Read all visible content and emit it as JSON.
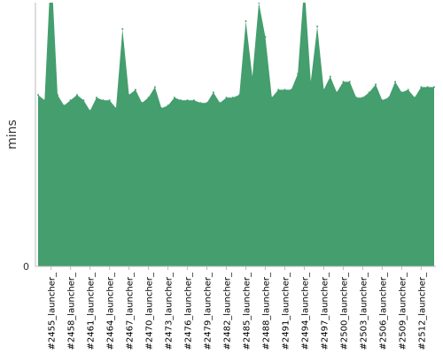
{
  "chart_data": {
    "type": "area",
    "xlabel": "",
    "ylabel": "mins",
    "y_ticks": [
      "0"
    ],
    "grid": false,
    "fill_color": "#449e6e",
    "axis_color": "#bbbbbb",
    "x_tick_labels": [
      "#2455_launcher_",
      "#2458_launcher_",
      "#2461_launcher_",
      "#2464_launcher_",
      "#2467_launcher_",
      "#2470_launcher_",
      "#2473_launcher_",
      "#2476_launcher_",
      "#2479_launcher_",
      "#2482_launcher_",
      "#2485_launcher_",
      "#2488_launcher_",
      "#2491_launcher_",
      "#2494_launcher_",
      "#2497_launcher_",
      "#2500_launcher_",
      "#2503_launcher_",
      "#2506_launcher_",
      "#2509_launcher_",
      "#2512_launcher_"
    ],
    "x": [
      2453,
      2454,
      2455,
      2456,
      2457,
      2458,
      2459,
      2460,
      2461,
      2462,
      2463,
      2464,
      2465,
      2466,
      2467,
      2468,
      2469,
      2470,
      2471,
      2472,
      2473,
      2474,
      2475,
      2476,
      2477,
      2478,
      2479,
      2480,
      2481,
      2482,
      2483,
      2484,
      2485,
      2486,
      2487,
      2488,
      2489,
      2490,
      2491,
      2492,
      2493,
      2494,
      2495,
      2496,
      2497,
      2498,
      2499,
      2500,
      2501,
      2502,
      2503,
      2504,
      2505,
      2506,
      2507,
      2508,
      2509,
      2510,
      2511,
      2512,
      2513,
      2514
    ],
    "values": [
      65,
      63,
      115,
      65,
      61,
      63,
      65,
      63,
      59,
      64,
      63,
      63,
      60,
      90,
      65,
      67,
      62,
      64,
      68,
      60,
      61,
      64,
      63,
      63,
      63,
      62,
      62,
      66,
      62,
      64,
      64,
      65,
      93,
      72,
      100,
      87,
      64,
      67,
      67,
      67,
      73,
      107,
      70,
      91,
      67,
      72,
      66,
      70,
      70,
      64,
      64,
      66,
      69,
      63,
      64,
      70,
      66,
      67,
      64,
      68,
      68,
      68
    ],
    "ylim": [
      0,
      100
    ]
  }
}
